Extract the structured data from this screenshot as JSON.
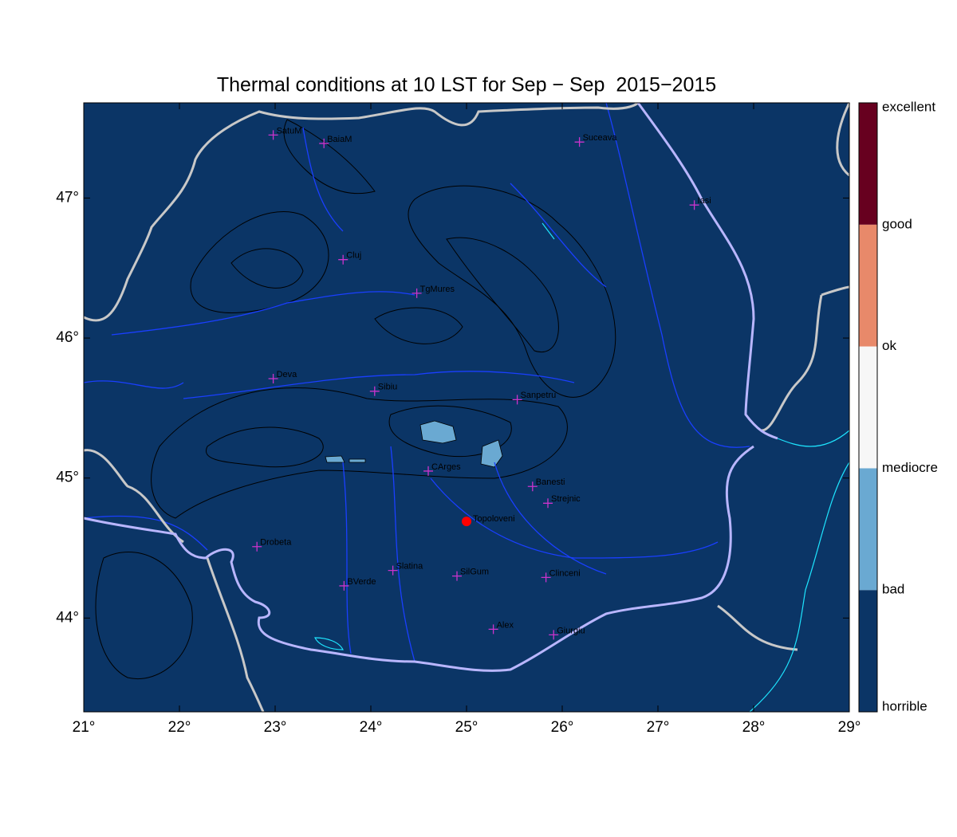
{
  "map": {
    "title": "Thermal conditions at 10 LST for Sep − Sep  2015−2015",
    "xlim": [
      21,
      29
    ],
    "ylim": [
      43.33,
      47.68
    ],
    "xticks": [
      {
        "value": 21,
        "label": "21°"
      },
      {
        "value": 22,
        "label": "22°"
      },
      {
        "value": 23,
        "label": "23°"
      },
      {
        "value": 24,
        "label": "24°"
      },
      {
        "value": 25,
        "label": "25°"
      },
      {
        "value": 26,
        "label": "26°"
      },
      {
        "value": 27,
        "label": "27°"
      },
      {
        "value": 28,
        "label": "28°"
      },
      {
        "value": 29,
        "label": "29°"
      }
    ],
    "yticks": [
      {
        "value": 44,
        "label": "44°"
      },
      {
        "value": 45,
        "label": "45°"
      },
      {
        "value": 46,
        "label": "46°"
      },
      {
        "value": 47,
        "label": "47°"
      }
    ],
    "background": "#0b3566",
    "cities": [
      {
        "name": "SatuM",
        "lon": 22.98,
        "lat": 47.45
      },
      {
        "name": "BaiaM",
        "lon": 23.51,
        "lat": 47.39
      },
      {
        "name": "Suceava",
        "lon": 26.18,
        "lat": 47.4
      },
      {
        "name": "Iasi",
        "lon": 27.38,
        "lat": 46.95
      },
      {
        "name": "Cluj",
        "lon": 23.71,
        "lat": 46.56
      },
      {
        "name": "TgMures",
        "lon": 24.48,
        "lat": 46.32
      },
      {
        "name": "Deva",
        "lon": 22.98,
        "lat": 45.71
      },
      {
        "name": "Sibiu",
        "lon": 24.04,
        "lat": 45.62
      },
      {
        "name": "Sanpetru",
        "lon": 25.53,
        "lat": 45.56
      },
      {
        "name": "CArges",
        "lon": 24.6,
        "lat": 45.05
      },
      {
        "name": "Banesti",
        "lon": 25.69,
        "lat": 44.94
      },
      {
        "name": "Strejnic",
        "lon": 25.85,
        "lat": 44.82
      },
      {
        "name": "Drobeta",
        "lon": 22.81,
        "lat": 44.51
      },
      {
        "name": "Slatina",
        "lon": 24.23,
        "lat": 44.34
      },
      {
        "name": "SilGum",
        "lon": 24.9,
        "lat": 44.3
      },
      {
        "name": "Clinceni",
        "lon": 25.83,
        "lat": 44.29
      },
      {
        "name": "BVerde",
        "lon": 23.72,
        "lat": 44.23
      },
      {
        "name": "Alex",
        "lon": 25.28,
        "lat": 43.92
      },
      {
        "name": "Giurgiu",
        "lon": 25.91,
        "lat": 43.88
      }
    ],
    "marker_color": "#cc33cc",
    "site": {
      "name": "Topoloveni",
      "lon": 25.0,
      "lat": 44.69,
      "color": "#ff0000"
    },
    "legend": {
      "labels": [
        "horrible",
        "bad",
        "mediocre",
        "ok",
        "good",
        "excellent"
      ],
      "colors": [
        "#0b3566",
        "#6aa9d2",
        "#f7f7f7",
        "#e8896a",
        "#67001f"
      ]
    }
  }
}
